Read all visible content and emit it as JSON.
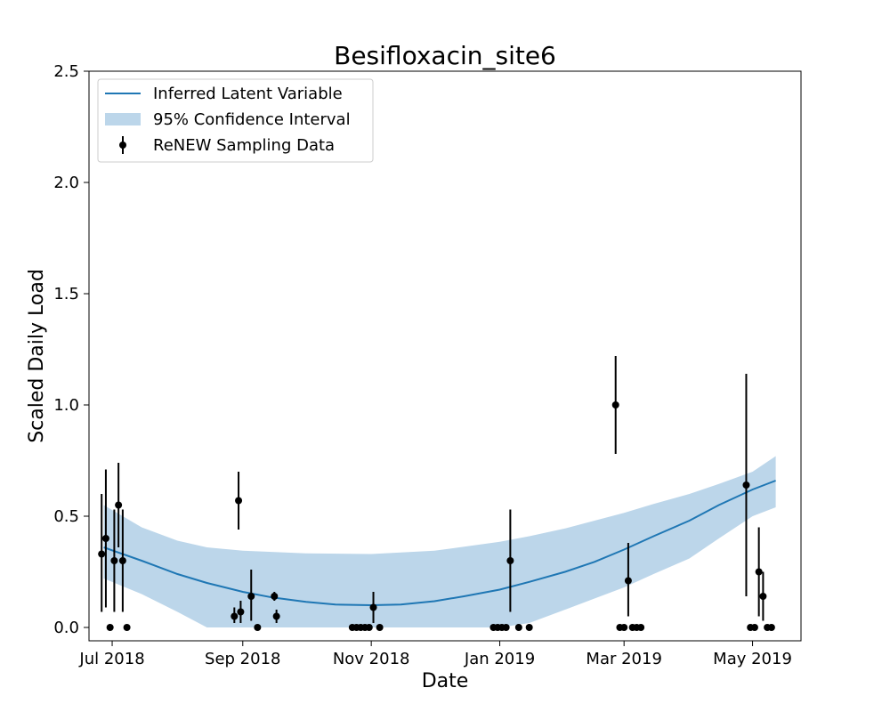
{
  "chart_data": {
    "type": "line",
    "title": "Besifloxacin_site6",
    "xlabel": "Date",
    "ylabel": "Scaled Daily Load",
    "xlim": [
      "2018-06-20",
      "2019-05-24"
    ],
    "ylim": [
      -0.06,
      2.5
    ],
    "x_ticks": [
      {
        "date": "2018-07-01",
        "label": "Jul 2018"
      },
      {
        "date": "2018-09-01",
        "label": "Sep 2018"
      },
      {
        "date": "2018-11-01",
        "label": "Nov 2018"
      },
      {
        "date": "2019-01-01",
        "label": "Jan 2019"
      },
      {
        "date": "2019-03-01",
        "label": "Mar 2019"
      },
      {
        "date": "2019-05-01",
        "label": "May 2019"
      }
    ],
    "y_ticks": [
      {
        "value": 0.0,
        "label": "0.0"
      },
      {
        "value": 0.5,
        "label": "0.5"
      },
      {
        "value": 1.0,
        "label": "1.0"
      },
      {
        "value": 1.5,
        "label": "1.5"
      },
      {
        "value": 2.0,
        "label": "2.0"
      },
      {
        "value": 2.5,
        "label": "2.5"
      }
    ],
    "grid": false,
    "legend_position": "upper-left",
    "legend": [
      {
        "label": "Inferred Latent Variable",
        "kind": "line"
      },
      {
        "label": "95% Confidence Interval",
        "kind": "band"
      },
      {
        "label": "ReNEW Sampling Data",
        "kind": "errorbar"
      }
    ],
    "colors": {
      "line": "#1f77b4",
      "band": "#a6c8e3",
      "points": "#000000"
    },
    "series": [
      {
        "name": "Inferred Latent Variable",
        "kind": "line",
        "points": [
          {
            "date": "2018-06-27",
            "y": 0.36
          },
          {
            "date": "2018-07-15",
            "y": 0.3
          },
          {
            "date": "2018-08-01",
            "y": 0.24
          },
          {
            "date": "2018-08-15",
            "y": 0.2
          },
          {
            "date": "2018-09-01",
            "y": 0.16
          },
          {
            "date": "2018-09-15",
            "y": 0.135
          },
          {
            "date": "2018-10-01",
            "y": 0.115
          },
          {
            "date": "2018-10-15",
            "y": 0.103
          },
          {
            "date": "2018-11-01",
            "y": 0.1
          },
          {
            "date": "2018-11-15",
            "y": 0.103
          },
          {
            "date": "2018-12-01",
            "y": 0.118
          },
          {
            "date": "2018-12-15",
            "y": 0.14
          },
          {
            "date": "2019-01-01",
            "y": 0.17
          },
          {
            "date": "2019-01-15",
            "y": 0.205
          },
          {
            "date": "2019-02-01",
            "y": 0.25
          },
          {
            "date": "2019-02-15",
            "y": 0.295
          },
          {
            "date": "2019-03-01",
            "y": 0.35
          },
          {
            "date": "2019-03-15",
            "y": 0.41
          },
          {
            "date": "2019-04-01",
            "y": 0.48
          },
          {
            "date": "2019-04-15",
            "y": 0.55
          },
          {
            "date": "2019-05-01",
            "y": 0.62
          },
          {
            "date": "2019-05-12",
            "y": 0.66
          }
        ]
      },
      {
        "name": "95% Confidence Interval",
        "kind": "band",
        "points": [
          {
            "date": "2018-06-27",
            "lower": 0.22,
            "upper": 0.55
          },
          {
            "date": "2018-07-15",
            "lower": 0.15,
            "upper": 0.45
          },
          {
            "date": "2018-08-01",
            "lower": 0.07,
            "upper": 0.39
          },
          {
            "date": "2018-08-15",
            "lower": 0.0,
            "upper": 0.36
          },
          {
            "date": "2018-09-01",
            "lower": 0.0,
            "upper": 0.345
          },
          {
            "date": "2018-10-01",
            "lower": 0.0,
            "upper": 0.333
          },
          {
            "date": "2018-11-01",
            "lower": 0.0,
            "upper": 0.33
          },
          {
            "date": "2018-12-01",
            "lower": 0.0,
            "upper": 0.345
          },
          {
            "date": "2019-01-01",
            "lower": 0.0,
            "upper": 0.385
          },
          {
            "date": "2019-01-15",
            "lower": 0.02,
            "upper": 0.41
          },
          {
            "date": "2019-02-01",
            "lower": 0.08,
            "upper": 0.445
          },
          {
            "date": "2019-02-15",
            "lower": 0.13,
            "upper": 0.48
          },
          {
            "date": "2019-03-01",
            "lower": 0.18,
            "upper": 0.515
          },
          {
            "date": "2019-03-15",
            "lower": 0.24,
            "upper": 0.555
          },
          {
            "date": "2019-04-01",
            "lower": 0.31,
            "upper": 0.6
          },
          {
            "date": "2019-04-15",
            "lower": 0.4,
            "upper": 0.645
          },
          {
            "date": "2019-05-01",
            "lower": 0.5,
            "upper": 0.7
          },
          {
            "date": "2019-05-12",
            "lower": 0.54,
            "upper": 0.77
          }
        ]
      },
      {
        "name": "ReNEW Sampling Data",
        "kind": "errorbar",
        "points": [
          {
            "date": "2018-06-26",
            "y": 0.33,
            "lower": 0.07,
            "upper": 0.6
          },
          {
            "date": "2018-06-28",
            "y": 0.4,
            "lower": 0.09,
            "upper": 0.71
          },
          {
            "date": "2018-06-30",
            "y": 0.0
          },
          {
            "date": "2018-07-02",
            "y": 0.3,
            "lower": 0.07,
            "upper": 0.53
          },
          {
            "date": "2018-07-04",
            "y": 0.55,
            "lower": 0.36,
            "upper": 0.74
          },
          {
            "date": "2018-07-06",
            "y": 0.3,
            "lower": 0.07,
            "upper": 0.53
          },
          {
            "date": "2018-07-08",
            "y": 0.0
          },
          {
            "date": "2018-08-28",
            "y": 0.05,
            "lower": 0.02,
            "upper": 0.09
          },
          {
            "date": "2018-08-30",
            "y": 0.57,
            "lower": 0.44,
            "upper": 0.7
          },
          {
            "date": "2018-08-31",
            "y": 0.07,
            "lower": 0.02,
            "upper": 0.12
          },
          {
            "date": "2018-09-05",
            "y": 0.14,
            "lower": 0.03,
            "upper": 0.26
          },
          {
            "date": "2018-09-08",
            "y": 0.0
          },
          {
            "date": "2018-09-16",
            "y": 0.14,
            "lower": 0.12,
            "upper": 0.16
          },
          {
            "date": "2018-09-17",
            "y": 0.05,
            "lower": 0.02,
            "upper": 0.08
          },
          {
            "date": "2018-10-23",
            "y": 0.0
          },
          {
            "date": "2018-10-25",
            "y": 0.0
          },
          {
            "date": "2018-10-27",
            "y": 0.0
          },
          {
            "date": "2018-10-29",
            "y": 0.0
          },
          {
            "date": "2018-10-31",
            "y": 0.0
          },
          {
            "date": "2018-11-02",
            "y": 0.09,
            "lower": 0.02,
            "upper": 0.16
          },
          {
            "date": "2018-11-05",
            "y": 0.0
          },
          {
            "date": "2018-12-29",
            "y": 0.0
          },
          {
            "date": "2018-12-31",
            "y": 0.0
          },
          {
            "date": "2019-01-02",
            "y": 0.0
          },
          {
            "date": "2019-01-04",
            "y": 0.0
          },
          {
            "date": "2019-01-06",
            "y": 0.3,
            "lower": 0.07,
            "upper": 0.53
          },
          {
            "date": "2019-01-10",
            "y": 0.0
          },
          {
            "date": "2019-01-15",
            "y": 0.0
          },
          {
            "date": "2019-02-25",
            "y": 1.0,
            "lower": 0.78,
            "upper": 1.22
          },
          {
            "date": "2019-02-27",
            "y": 0.0
          },
          {
            "date": "2019-03-01",
            "y": 0.0
          },
          {
            "date": "2019-03-03",
            "y": 0.21,
            "lower": 0.05,
            "upper": 0.38
          },
          {
            "date": "2019-03-05",
            "y": 0.0
          },
          {
            "date": "2019-03-07",
            "y": 0.0
          },
          {
            "date": "2019-03-09",
            "y": 0.0
          },
          {
            "date": "2019-04-28",
            "y": 0.64,
            "lower": 0.14,
            "upper": 1.14
          },
          {
            "date": "2019-04-30",
            "y": 0.0
          },
          {
            "date": "2019-05-02",
            "y": 0.0
          },
          {
            "date": "2019-05-04",
            "y": 0.25,
            "lower": 0.05,
            "upper": 0.45
          },
          {
            "date": "2019-05-06",
            "y": 0.14,
            "lower": 0.03,
            "upper": 0.25
          },
          {
            "date": "2019-05-08",
            "y": 0.0
          },
          {
            "date": "2019-05-10",
            "y": 0.0
          }
        ]
      }
    ]
  }
}
